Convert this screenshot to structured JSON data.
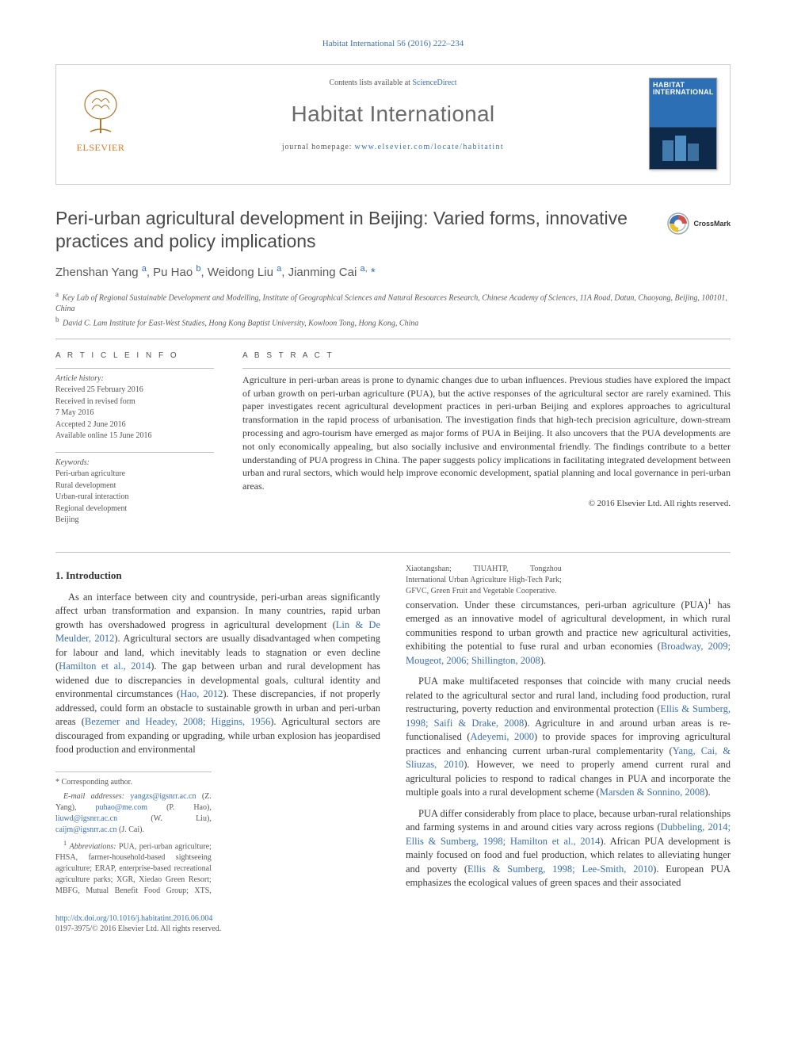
{
  "colors": {
    "link": "#3b6fb0",
    "text": "#3a3a3a",
    "muted": "#555555",
    "rule": "#bfbfbf",
    "elsevier": "#e07b24",
    "cover_top": "#2c6fb5",
    "cover_bottom": "#0d2a4a",
    "background": "#ffffff"
  },
  "running_head": "Habitat International 56 (2016) 222–234",
  "header": {
    "contents_prefix": "Contents lists available at ",
    "contents_link": "ScienceDirect",
    "journal": "Habitat International",
    "homepage_prefix": "journal homepage: ",
    "homepage_url": "www.elsevier.com/locate/habitatint",
    "elsevier_brand": "ELSEVIER",
    "cover_title_line1": "HABITAT",
    "cover_title_line2": "INTERNATIONAL"
  },
  "title": "Peri-urban agricultural development in Beijing: Varied forms, innovative practices and policy implications",
  "crossmark_label": "CrossMark",
  "authors": {
    "html": "Zhenshan Yang <sup class='aff-sup'>a</sup>, Pu Hao <sup class='aff-sup'>b</sup>, Weidong Liu <sup class='aff-sup'>a</sup>, Jianming Cai <sup class='aff-sup'>a,</sup> <span class='corr'>*</span>"
  },
  "affiliations": [
    {
      "sup": "a",
      "text": "Key Lab of Regional Sustainable Development and Modelling, Institute of Geographical Sciences and Natural Resources Research, Chinese Academy of Sciences, 11A Road, Datun, Chaoyang, Beijing, 100101, China"
    },
    {
      "sup": "b",
      "text": "David C. Lam Institute for East-West Studies, Hong Kong Baptist University, Kowloon Tong, Hong Kong, China"
    }
  ],
  "article_info": {
    "heading": "A R T I C L E   I N F O",
    "history_label": "Article history:",
    "history": [
      "Received 25 February 2016",
      "Received in revised form",
      "7 May 2016",
      "Accepted 2 June 2016",
      "Available online 15 June 2016"
    ],
    "keywords_label": "Keywords:",
    "keywords": [
      "Peri-urban agriculture",
      "Rural development",
      "Urban-rural interaction",
      "Regional development",
      "Beijing"
    ]
  },
  "abstract": {
    "heading": "A B S T R A C T",
    "body": "Agriculture in peri-urban areas is prone to dynamic changes due to urban influences. Previous studies have explored the impact of urban growth on peri-urban agriculture (PUA), but the active responses of the agricultural sector are rarely examined. This paper investigates recent agricultural development practices in peri-urban Beijing and explores approaches to agricultural transformation in the rapid process of urbanisation. The investigation finds that high-tech precision agriculture, down-stream processing and agro-tourism have emerged as major forms of PUA in Beijing. It also uncovers that the PUA developments are not only economically appealing, but also socially inclusive and environmental friendly. The findings contribute to a better understanding of PUA progress in China. The paper suggests policy implications in facilitating integrated development between urban and rural sectors, which would help improve economic development, spatial planning and local governance in peri-urban areas.",
    "copyright": "© 2016 Elsevier Ltd. All rights reserved."
  },
  "section_heading": "1. Introduction",
  "paragraphs": [
    "As an interface between city and countryside, peri-urban areas significantly affect urban transformation and expansion. In many countries, rapid urban growth has overshadowed progress in agricultural development (<a class='cite' href='#'>Lin &amp; De Meulder, 2012</a>). Agricultural sectors are usually disadvantaged when competing for labour and land, which inevitably leads to stagnation or even decline (<a class='cite' href='#'>Hamilton et al., 2014</a>). The gap between urban and rural development has widened due to discrepancies in developmental goals, cultural identity and environmental circumstances (<a class='cite' href='#'>Hao, 2012</a>). These discrepancies, if not properly addressed, could form an obstacle to sustainable growth in urban and peri-urban areas (<a class='cite' href='#'>Bezemer and Headey, 2008; Higgins, 1956</a>). Agricultural sectors are discouraged from expanding or upgrading, while urban explosion has jeopardised food production and environmental",
    "conservation. Under these circumstances, peri-urban agriculture (PUA)<sup>1</sup> has emerged as an innovative model of agricultural development, in which rural communities respond to urban growth and practice new agricultural activities, exhibiting the potential to fuse rural and urban economies (<a class='cite' href='#'>Broadway, 2009; Mougeot, 2006; Shillington, 2008</a>).",
    "PUA make multifaceted responses that coincide with many crucial needs related to the agricultural sector and rural land, including food production, rural restructuring, poverty reduction and environmental protection (<a class='cite' href='#'>Ellis &amp; Sumberg, 1998; Saifi &amp; Drake, 2008</a>). Agriculture in and around urban areas is re-functionalised (<a class='cite' href='#'>Adeyemi, 2000</a>) to provide spaces for improving agricultural practices and enhancing current urban-rural complementarity (<a class='cite' href='#'>Yang, Cai, &amp; Sliuzas, 2010</a>). However, we need to properly amend current rural and agricultural policies to respond to radical changes in PUA and incorporate the multiple goals into a rural development scheme (<a class='cite' href='#'>Marsden &amp; Sonnino, 2008</a>).",
    "PUA differ considerably from place to place, because urban-rural relationships and farming systems in and around cities vary across regions (<a class='cite' href='#'>Dubbeling, 2014; Ellis &amp; Sumberg, 1998; Hamilton et al., 2014</a>). African PUA development is mainly focused on food and fuel production, which relates to alleviating hunger and poverty (<a class='cite' href='#'>Ellis &amp; Sumberg, 1998; Lee-Smith, 2010</a>). European PUA emphasizes the ecological values of green spaces and their associated"
  ],
  "footnotes": {
    "corresponding": "* Corresponding author.",
    "emails_label": "E-mail addresses:",
    "emails": [
      {
        "addr": "yangzs@igsnrr.ac.cn",
        "who": "(Z. Yang)"
      },
      {
        "addr": "puhao@me.com",
        "who": "(P. Hao)"
      },
      {
        "addr": "liuwd@igsnrr.ac.cn",
        "who": "(W. Liu)"
      },
      {
        "addr": "caijm@igsnrr.ac.cn",
        "who": "(J. Cai)."
      }
    ],
    "abbrev_label": "1",
    "abbrev_word": "Abbreviations:",
    "abbrev_text": "PUA, peri-urban agriculture; FHSA, farmer-household-based sightseeing agriculture; ERAP, enterprise-based recreational agriculture parks; XGR, Xiedao Green Resort; MBFG, Mutual Benefit Food Group; XTS, Xiaotangshan; TIUAHTP, Tongzhou International Urban Agriculture High-Tech Park; GFVC, Green Fruit and Vegetable Cooperative."
  },
  "bottom": {
    "doi": "http://dx.doi.org/10.1016/j.habitatint.2016.06.004",
    "issn_line": "0197-3975/© 2016 Elsevier Ltd. All rights reserved."
  }
}
